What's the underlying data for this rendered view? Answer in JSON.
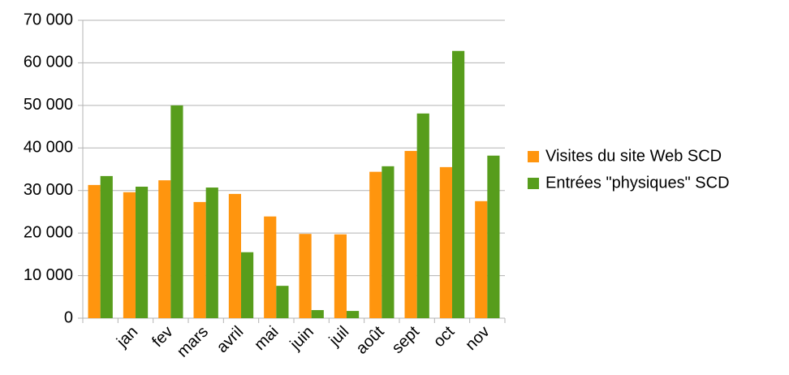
{
  "chart_data": {
    "type": "bar",
    "categories": [
      null,
      "jan",
      "fev",
      "mars",
      "avril",
      "mai",
      "juin",
      "juil",
      "août",
      "sept",
      "oct",
      "nov"
    ],
    "series": [
      {
        "name": "Visites du site Web SCD",
        "color": "#ff950e",
        "values": [
          31300,
          29600,
          32400,
          27300,
          29200,
          23900,
          19800,
          19700,
          34400,
          39300,
          35500,
          27500
        ]
      },
      {
        "name": "Entrées \"physiques\" SCD",
        "color": "#579d1c",
        "values": [
          33400,
          30900,
          50000,
          30700,
          15500,
          7600,
          1900,
          1700,
          35700,
          48100,
          62800,
          38200
        ]
      }
    ],
    "ylim": [
      0,
      70000
    ],
    "yticks": [
      {
        "value": 0,
        "label": "0"
      },
      {
        "value": 10000,
        "label": "10 000"
      },
      {
        "value": 20000,
        "label": "20 000"
      },
      {
        "value": 30000,
        "label": "30 000"
      },
      {
        "value": 40000,
        "label": "40 000"
      },
      {
        "value": 50000,
        "label": "50 000"
      },
      {
        "value": 60000,
        "label": "60 000"
      },
      {
        "value": 70000,
        "label": "70 000"
      }
    ],
    "grid": true,
    "legend": "right"
  }
}
